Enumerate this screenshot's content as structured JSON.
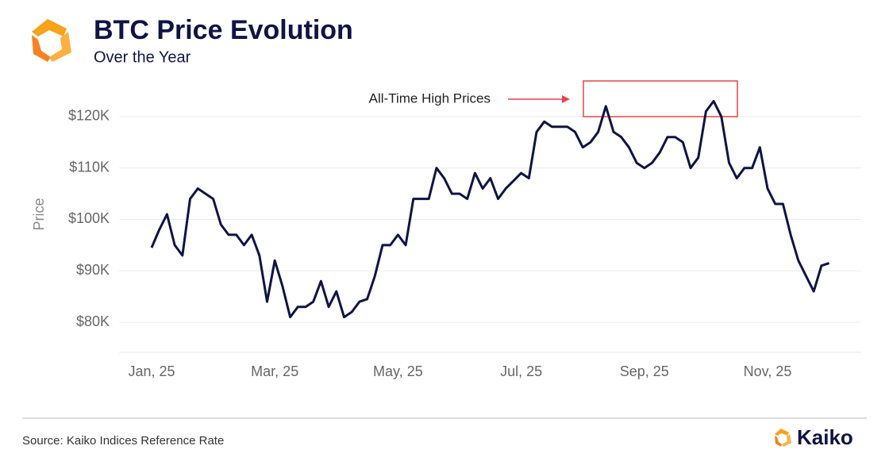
{
  "chart_data": {
    "type": "line",
    "title": "BTC Price Evolution",
    "subtitle": "Over the Year",
    "y_label": "Price",
    "annotation": "All-Time High Prices",
    "source": "Source: Kaiko Indices Reference Rate",
    "brand": "Kaiko",
    "color": "#0f1445",
    "grid": true,
    "ylim": [
      74000,
      128000
    ],
    "yticks": [
      {
        "value": 80000,
        "label": "$80K"
      },
      {
        "value": 90000,
        "label": "$90K"
      },
      {
        "value": 100000,
        "label": "$100K"
      },
      {
        "value": 110000,
        "label": "$110K"
      },
      {
        "value": 120000,
        "label": "$120K"
      }
    ],
    "categories": [
      "Jan, 25",
      null,
      null,
      null,
      null,
      null,
      null,
      null,
      null,
      null,
      null,
      null,
      null,
      null,
      null,
      null,
      "Mar, 25",
      null,
      null,
      null,
      null,
      null,
      null,
      null,
      null,
      null,
      null,
      null,
      null,
      null,
      null,
      null,
      "May, 25",
      null,
      null,
      null,
      null,
      null,
      null,
      null,
      null,
      null,
      null,
      null,
      null,
      null,
      null,
      null,
      "Jul, 25",
      null,
      null,
      null,
      null,
      null,
      null,
      null,
      null,
      null,
      null,
      null,
      null,
      null,
      null,
      null,
      "Sep, 25",
      null,
      null,
      null,
      null,
      null,
      null,
      null,
      null,
      null,
      null,
      null,
      null,
      null,
      null,
      null,
      "Nov, 25",
      null,
      null,
      null,
      null,
      null,
      null,
      null,
      null
    ],
    "values": [
      94500,
      98000,
      101000,
      95000,
      93000,
      104000,
      106000,
      105000,
      104000,
      99000,
      97000,
      97000,
      95000,
      97000,
      93000,
      84000,
      92000,
      87000,
      81000,
      83000,
      83000,
      84000,
      88000,
      83000,
      86000,
      81000,
      82000,
      84000,
      84500,
      89000,
      95000,
      95000,
      97000,
      95000,
      104000,
      104000,
      104000,
      110000,
      108000,
      105000,
      105000,
      104000,
      109000,
      106000,
      108000,
      104000,
      106000,
      107500,
      109000,
      108000,
      117000,
      119000,
      118000,
      118000,
      118000,
      117000,
      114000,
      115000,
      117000,
      122000,
      117000,
      116000,
      114000,
      111000,
      110000,
      111000,
      113000,
      116000,
      116000,
      115000,
      110000,
      112000,
      121000,
      123000,
      120000,
      111000,
      108000,
      110000,
      110000,
      114000,
      106000,
      103000,
      103000,
      97000,
      92000,
      89000,
      86000,
      91000,
      91500
    ]
  }
}
